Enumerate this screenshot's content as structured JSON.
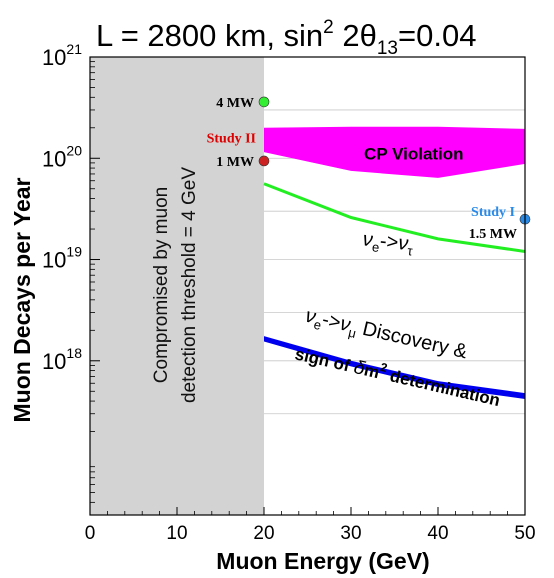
{
  "chart_data": {
    "type": "line",
    "title": {
      "main": "L = 2800 km, sin",
      "sup": "2",
      "mid": " 2θ",
      "sub": "13",
      "tail": "=0.04"
    },
    "xlabel": "Muon Energy  (GeV)",
    "ylabel": "Muon Decays per Year",
    "x_scale": "linear",
    "y_scale": "log",
    "xlim": [
      0,
      50
    ],
    "ylim": [
      3e+16,
      1e+21
    ],
    "x_ticks": [
      0,
      10,
      20,
      30,
      40,
      50
    ],
    "y_ticks": [
      {
        "value": 1e+18,
        "label": "10",
        "exp": "18"
      },
      {
        "value": 1e+19,
        "label": "10",
        "exp": "19"
      },
      {
        "value": 1e+20,
        "label": "10",
        "exp": "20"
      },
      {
        "value": 1e+21,
        "label": "10",
        "exp": "21"
      }
    ],
    "grid": "horizontal",
    "shaded_region": {
      "x_range": [
        0,
        20
      ],
      "text_line1": "Compromised by muon",
      "text_line2": "detection threshold = 4 GeV",
      "color": "#d3d3d3"
    },
    "cp_band": {
      "label": "CP Violation",
      "color": "#ff00ff",
      "x": [
        20,
        30,
        40,
        50
      ],
      "upper": [
        2e+20,
        2.05e+20,
        2.05e+20,
        1.95e+20
      ],
      "lower": [
        1.15e+20,
        7.5e+19,
        6.4e+19,
        8.8e+19
      ]
    },
    "series": [
      {
        "label_pre": "ν",
        "label_pre_sub": "e",
        "label_arrow": "->",
        "label_post": "ν",
        "label_post_sub": "τ",
        "color": "#22ee22",
        "x": [
          20,
          30,
          40,
          50
        ],
        "values": [
          5.6e+19,
          2.6e+19,
          1.6e+19,
          1.2e+19
        ]
      },
      {
        "label_pre": "ν",
        "label_pre_sub": "e",
        "label_arrow": "->",
        "label_post": "ν",
        "label_post_sub": "μ",
        "label_tail": " Discovery &",
        "label2_pre": "sign of ",
        "label2_delta": "δ",
        "label2_m": "m",
        "label2_exp": "2",
        "label2_tail": " determination",
        "color": "#0000ee",
        "x": [
          20,
          30,
          40,
          50
        ],
        "upper": [
          1.75e+18,
          1e+18,
          6.3e+17,
          4.8e+17
        ],
        "lower": [
          1.55e+18,
          8.8e+17,
          5.5e+17,
          4.2e+17
        ]
      }
    ],
    "points": [
      {
        "label": "4 MW",
        "x": 20,
        "y": 3.6e+20,
        "color": "#33ee33",
        "label_color": "#000000"
      },
      {
        "label": "1 MW",
        "x": 20,
        "y": 9.4e+19,
        "color": "#cc2222",
        "label_color": "#000000"
      },
      {
        "label": "Study I",
        "x": 50,
        "y": 2.5e+19,
        "color": "#2a8ae8",
        "label_color": "#2a8ae8"
      }
    ],
    "annotations": {
      "study2": {
        "text": "Study II",
        "color": "#dd0000"
      },
      "power15": {
        "text": "1.5 MW",
        "color": "#000000"
      }
    }
  }
}
